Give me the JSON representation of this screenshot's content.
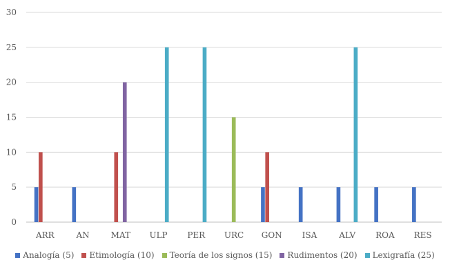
{
  "chart_data": {
    "type": "bar",
    "categories": [
      "ARR",
      "AN",
      "MAT",
      "ULP",
      "PER",
      "URC",
      "GON",
      "ISA",
      "ALV",
      "ROA",
      "RES"
    ],
    "series": [
      {
        "name": "Analogía (5)",
        "color": "#4472C4",
        "values": [
          5,
          5,
          0,
          0,
          0,
          0,
          5,
          5,
          5,
          5,
          5
        ]
      },
      {
        "name": "Etimología (10)",
        "color": "#C0504D",
        "values": [
          10,
          0,
          10,
          0,
          0,
          0,
          10,
          0,
          0,
          0,
          0
        ]
      },
      {
        "name": "Teoría de los signos (15)",
        "color": "#9BBB59",
        "values": [
          0,
          0,
          0,
          0,
          0,
          15,
          0,
          0,
          0,
          0,
          0
        ]
      },
      {
        "name": "Rudimentos (20)",
        "color": "#8064A2",
        "values": [
          0,
          0,
          20,
          0,
          0,
          0,
          0,
          0,
          0,
          0,
          0
        ]
      },
      {
        "name": "Lexigrafía (25)",
        "color": "#4BACC6",
        "values": [
          0,
          0,
          0,
          25,
          25,
          0,
          0,
          0,
          25,
          0,
          0
        ]
      }
    ],
    "y_ticks": [
      "0",
      "5",
      "10",
      "15",
      "20",
      "25",
      "30"
    ],
    "ylim": [
      0,
      30
    ],
    "grid": true,
    "legend_position": "bottom"
  }
}
